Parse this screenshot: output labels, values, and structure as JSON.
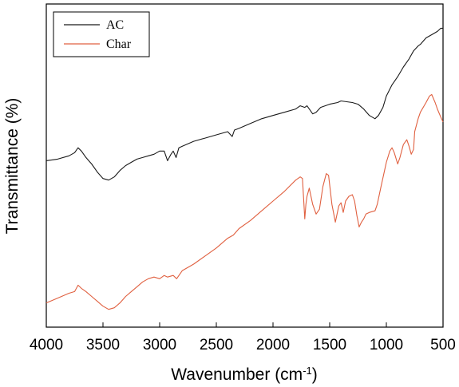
{
  "chart_data": {
    "type": "line",
    "xlabel": "Wavenumber (cm",
    "xlabel_sup": "-1",
    "xlabel_end": ")",
    "ylabel": "Transmittance (%)",
    "xlim": [
      4000,
      500
    ],
    "x_reversed": true,
    "ylim": [
      0,
      100
    ],
    "y_tick_labels_shown": false,
    "xticks": [
      4000,
      3500,
      3000,
      2500,
      2000,
      1500,
      1000,
      500
    ],
    "xtick_labels": [
      "4000",
      "3500",
      "3000",
      "2500",
      "2000",
      "1500",
      "1000",
      "500"
    ],
    "legend": {
      "position": "top-left"
    },
    "series": [
      {
        "name": "AC",
        "color": "#1a1a1a",
        "points": [
          [
            4000,
            51.5
          ],
          [
            3900,
            52.0
          ],
          [
            3800,
            53.0
          ],
          [
            3750,
            54.0
          ],
          [
            3720,
            55.5
          ],
          [
            3690,
            54.5
          ],
          [
            3650,
            52.5
          ],
          [
            3600,
            50.5
          ],
          [
            3550,
            48.0
          ],
          [
            3500,
            46.0
          ],
          [
            3450,
            45.5
          ],
          [
            3400,
            46.5
          ],
          [
            3350,
            48.5
          ],
          [
            3300,
            50.0
          ],
          [
            3250,
            51.0
          ],
          [
            3200,
            52.0
          ],
          [
            3150,
            52.5
          ],
          [
            3100,
            53.0
          ],
          [
            3050,
            53.5
          ],
          [
            3000,
            54.5
          ],
          [
            2960,
            54.5
          ],
          [
            2930,
            51.5
          ],
          [
            2900,
            53.5
          ],
          [
            2880,
            54.5
          ],
          [
            2855,
            52.5
          ],
          [
            2830,
            55.5
          ],
          [
            2800,
            56.0
          ],
          [
            2700,
            57.5
          ],
          [
            2600,
            58.5
          ],
          [
            2500,
            59.5
          ],
          [
            2400,
            60.5
          ],
          [
            2360,
            59.0
          ],
          [
            2340,
            61.0
          ],
          [
            2300,
            61.5
          ],
          [
            2200,
            63.0
          ],
          [
            2100,
            64.5
          ],
          [
            2000,
            65.5
          ],
          [
            1900,
            66.5
          ],
          [
            1800,
            67.5
          ],
          [
            1760,
            68.5
          ],
          [
            1720,
            68.0
          ],
          [
            1700,
            68.5
          ],
          [
            1650,
            66.0
          ],
          [
            1620,
            66.5
          ],
          [
            1580,
            68.0
          ],
          [
            1500,
            69.0
          ],
          [
            1430,
            69.5
          ],
          [
            1400,
            70.0
          ],
          [
            1300,
            69.5
          ],
          [
            1250,
            69.0
          ],
          [
            1200,
            67.5
          ],
          [
            1150,
            65.5
          ],
          [
            1100,
            64.5
          ],
          [
            1070,
            65.5
          ],
          [
            1030,
            68.0
          ],
          [
            1000,
            71.5
          ],
          [
            950,
            75.0
          ],
          [
            900,
            77.5
          ],
          [
            850,
            80.5
          ],
          [
            800,
            83.0
          ],
          [
            760,
            85.5
          ],
          [
            720,
            87.0
          ],
          [
            700,
            87.5
          ],
          [
            650,
            89.5
          ],
          [
            600,
            90.5
          ],
          [
            550,
            91.5
          ],
          [
            520,
            92.5
          ],
          [
            500,
            92.5
          ]
        ]
      },
      {
        "name": "Char",
        "color": "#e06040",
        "points": [
          [
            4000,
            7.5
          ],
          [
            3900,
            9.0
          ],
          [
            3800,
            10.5
          ],
          [
            3750,
            11.0
          ],
          [
            3720,
            13.0
          ],
          [
            3690,
            12.0
          ],
          [
            3650,
            11.0
          ],
          [
            3600,
            9.5
          ],
          [
            3550,
            8.0
          ],
          [
            3500,
            6.5
          ],
          [
            3450,
            5.5
          ],
          [
            3400,
            6.0
          ],
          [
            3350,
            7.5
          ],
          [
            3300,
            9.5
          ],
          [
            3250,
            11.0
          ],
          [
            3200,
            12.5
          ],
          [
            3150,
            14.0
          ],
          [
            3100,
            15.0
          ],
          [
            3050,
            15.5
          ],
          [
            3000,
            15.0
          ],
          [
            2960,
            16.0
          ],
          [
            2930,
            15.5
          ],
          [
            2880,
            16.0
          ],
          [
            2850,
            15.0
          ],
          [
            2800,
            17.5
          ],
          [
            2700,
            19.5
          ],
          [
            2600,
            22.0
          ],
          [
            2500,
            24.5
          ],
          [
            2400,
            27.5
          ],
          [
            2350,
            28.5
          ],
          [
            2300,
            30.5
          ],
          [
            2200,
            33.0
          ],
          [
            2100,
            36.0
          ],
          [
            2000,
            39.0
          ],
          [
            1900,
            42.0
          ],
          [
            1800,
            45.5
          ],
          [
            1760,
            46.5
          ],
          [
            1740,
            46.0
          ],
          [
            1720,
            33.5
          ],
          [
            1710,
            38.0
          ],
          [
            1700,
            40.5
          ],
          [
            1680,
            43.0
          ],
          [
            1650,
            38.0
          ],
          [
            1620,
            35.0
          ],
          [
            1590,
            36.5
          ],
          [
            1560,
            43.5
          ],
          [
            1530,
            47.5
          ],
          [
            1510,
            47.0
          ],
          [
            1480,
            38.0
          ],
          [
            1450,
            32.5
          ],
          [
            1420,
            37.5
          ],
          [
            1400,
            38.5
          ],
          [
            1380,
            35.5
          ],
          [
            1360,
            39.0
          ],
          [
            1330,
            40.5
          ],
          [
            1300,
            41.0
          ],
          [
            1280,
            39.0
          ],
          [
            1260,
            34.5
          ],
          [
            1240,
            31.0
          ],
          [
            1220,
            32.5
          ],
          [
            1200,
            33.5
          ],
          [
            1180,
            35.0
          ],
          [
            1150,
            35.5
          ],
          [
            1100,
            36.0
          ],
          [
            1080,
            38.0
          ],
          [
            1050,
            43.0
          ],
          [
            1000,
            51.0
          ],
          [
            970,
            54.5
          ],
          [
            950,
            55.5
          ],
          [
            930,
            54.0
          ],
          [
            900,
            50.5
          ],
          [
            880,
            52.5
          ],
          [
            850,
            56.5
          ],
          [
            820,
            58.0
          ],
          [
            800,
            56.0
          ],
          [
            780,
            53.5
          ],
          [
            760,
            55.0
          ],
          [
            750,
            60.5
          ],
          [
            720,
            64.5
          ],
          [
            700,
            66.5
          ],
          [
            650,
            69.5
          ],
          [
            620,
            71.5
          ],
          [
            600,
            72.0
          ],
          [
            570,
            69.5
          ],
          [
            550,
            67.5
          ],
          [
            520,
            65.0
          ],
          [
            500,
            63.5
          ]
        ]
      }
    ]
  }
}
